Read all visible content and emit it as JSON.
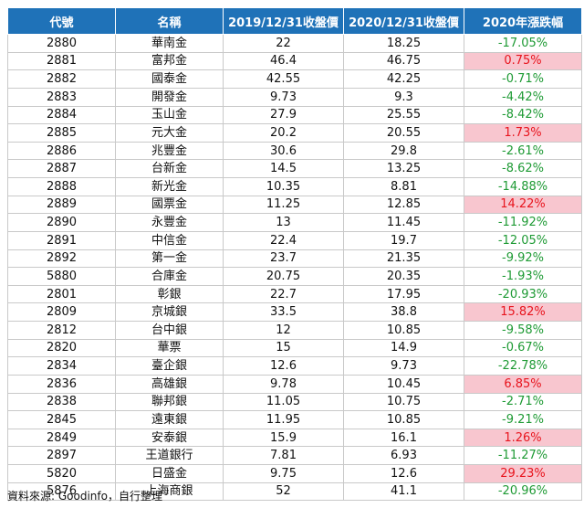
{
  "headers": [
    "代號",
    "名稱",
    "2019/12/31收盤價",
    "2020/12/31收盤價",
    "2020年漲跌幅"
  ],
  "rows": [
    {
      "code": "2880",
      "name": "華南金",
      "p2019": "22",
      "p2020": "18.25",
      "chg": "-17.05%",
      "up": false
    },
    {
      "code": "2881",
      "name": "富邦金",
      "p2019": "46.4",
      "p2020": "46.75",
      "chg": "0.75%",
      "up": true
    },
    {
      "code": "2882",
      "name": "國泰金",
      "p2019": "42.55",
      "p2020": "42.25",
      "chg": "-0.71%",
      "up": false
    },
    {
      "code": "2883",
      "name": "開發金",
      "p2019": "9.73",
      "p2020": "9.3",
      "chg": "-4.42%",
      "up": false
    },
    {
      "code": "2884",
      "name": "玉山金",
      "p2019": "27.9",
      "p2020": "25.55",
      "chg": "-8.42%",
      "up": false
    },
    {
      "code": "2885",
      "name": "元大金",
      "p2019": "20.2",
      "p2020": "20.55",
      "chg": "1.73%",
      "up": true
    },
    {
      "code": "2886",
      "name": "兆豐金",
      "p2019": "30.6",
      "p2020": "29.8",
      "chg": "-2.61%",
      "up": false
    },
    {
      "code": "2887",
      "name": "台新金",
      "p2019": "14.5",
      "p2020": "13.25",
      "chg": "-8.62%",
      "up": false
    },
    {
      "code": "2888",
      "name": "新光金",
      "p2019": "10.35",
      "p2020": "8.81",
      "chg": "-14.88%",
      "up": false
    },
    {
      "code": "2889",
      "name": "國票金",
      "p2019": "11.25",
      "p2020": "12.85",
      "chg": "14.22%",
      "up": true
    },
    {
      "code": "2890",
      "name": "永豐金",
      "p2019": "13",
      "p2020": "11.45",
      "chg": "-11.92%",
      "up": false
    },
    {
      "code": "2891",
      "name": "中信金",
      "p2019": "22.4",
      "p2020": "19.7",
      "chg": "-12.05%",
      "up": false
    },
    {
      "code": "2892",
      "name": "第一金",
      "p2019": "23.7",
      "p2020": "21.35",
      "chg": "-9.92%",
      "up": false
    },
    {
      "code": "5880",
      "name": "合庫金",
      "p2019": "20.75",
      "p2020": "20.35",
      "chg": "-1.93%",
      "up": false
    },
    {
      "code": "2801",
      "name": "彰銀",
      "p2019": "22.7",
      "p2020": "17.95",
      "chg": "-20.93%",
      "up": false
    },
    {
      "code": "2809",
      "name": "京城銀",
      "p2019": "33.5",
      "p2020": "38.8",
      "chg": "15.82%",
      "up": true
    },
    {
      "code": "2812",
      "name": "台中銀",
      "p2019": "12",
      "p2020": "10.85",
      "chg": "-9.58%",
      "up": false
    },
    {
      "code": "2820",
      "name": "華票",
      "p2019": "15",
      "p2020": "14.9",
      "chg": "-0.67%",
      "up": false
    },
    {
      "code": "2834",
      "name": "臺企銀",
      "p2019": "12.6",
      "p2020": "9.73",
      "chg": "-22.78%",
      "up": false
    },
    {
      "code": "2836",
      "name": "高雄銀",
      "p2019": "9.78",
      "p2020": "10.45",
      "chg": "6.85%",
      "up": true
    },
    {
      "code": "2838",
      "name": "聯邦銀",
      "p2019": "11.05",
      "p2020": "10.75",
      "chg": "-2.71%",
      "up": false
    },
    {
      "code": "2845",
      "name": "遠東銀",
      "p2019": "11.95",
      "p2020": "10.85",
      "chg": "-9.21%",
      "up": false
    },
    {
      "code": "2849",
      "name": "安泰銀",
      "p2019": "15.9",
      "p2020": "16.1",
      "chg": "1.26%",
      "up": true
    },
    {
      "code": "2897",
      "name": "王道銀行",
      "p2019": "7.81",
      "p2020": "6.93",
      "chg": "-11.27%",
      "up": false
    },
    {
      "code": "5820",
      "name": "日盛金",
      "p2019": "9.75",
      "p2020": "12.6",
      "chg": "29.23%",
      "up": true
    },
    {
      "code": "5876",
      "name": "上海商銀",
      "p2019": "52",
      "p2020": "41.1",
      "chg": "-20.96%",
      "up": false
    }
  ],
  "colors": {
    "header_bg": "#1f72b8",
    "positive_bg": "#f8c6cf",
    "positive_text": "#e8141d",
    "negative_text": "#1e9a34"
  },
  "source": "資料來源: Goodinfo，自行整理"
}
